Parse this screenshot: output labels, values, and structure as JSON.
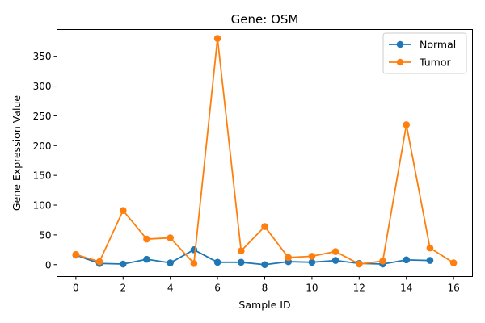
{
  "chart_data": {
    "type": "line",
    "title": "Gene: OSM",
    "xlabel": "Sample ID",
    "ylabel": "Gene Expression Value",
    "xlim": [
      -0.8,
      16.8
    ],
    "ylim": [
      -20,
      395
    ],
    "xticks": [
      0,
      2,
      4,
      6,
      8,
      10,
      12,
      14,
      16
    ],
    "yticks": [
      0,
      50,
      100,
      150,
      200,
      250,
      300,
      350
    ],
    "grid": false,
    "legend": "top-right",
    "series": [
      {
        "name": "Normal",
        "color": "#1f77b4",
        "x": [
          0,
          1,
          2,
          3,
          4,
          5,
          6,
          7,
          8,
          9,
          10,
          11,
          12,
          13,
          14,
          15
        ],
        "y": [
          16,
          2,
          1,
          9,
          3,
          25,
          4,
          4,
          0,
          5,
          4,
          7,
          2,
          1,
          8,
          7
        ]
      },
      {
        "name": "Tumor",
        "color": "#ff7f0e",
        "x": [
          0,
          1,
          2,
          3,
          4,
          5,
          6,
          7,
          8,
          9,
          10,
          11,
          12,
          13,
          14,
          15,
          16
        ],
        "y": [
          17,
          5,
          91,
          43,
          45,
          2,
          380,
          23,
          64,
          12,
          14,
          22,
          1,
          6,
          235,
          28,
          3
        ]
      }
    ]
  }
}
